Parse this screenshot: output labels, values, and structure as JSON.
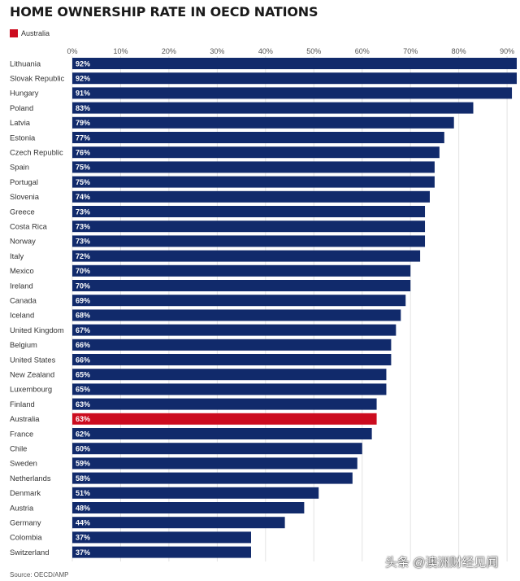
{
  "colors": {
    "bar": "#112a6b",
    "highlight": "#cc0c1f",
    "grid": "#e3e3e3",
    "label_text": "#333333",
    "value_text": "#ffffff"
  },
  "watermark": "头条 @澳洲财经见闻",
  "chart_data": {
    "type": "bar",
    "orientation": "horizontal",
    "title": "HOME OWNERSHIP RATE IN OECD NATIONS",
    "legend": [
      {
        "label": "Australia",
        "color": "#cc0c1f"
      }
    ],
    "highlight": "Australia",
    "xlim": [
      0,
      92
    ],
    "xticks": [
      0,
      10,
      20,
      30,
      40,
      50,
      60,
      70,
      80,
      90
    ],
    "xtick_labels": [
      "0%",
      "10%",
      "20%",
      "30%",
      "40%",
      "50%",
      "60%",
      "70%",
      "80%",
      "90%"
    ],
    "categories": [
      "Lithuania",
      "Slovak Republic",
      "Hungary",
      "Poland",
      "Latvia",
      "Estonia",
      "Czech Republic",
      "Spain",
      "Portugal",
      "Slovenia",
      "Greece",
      "Costa Rica",
      "Norway",
      "Italy",
      "Mexico",
      "Ireland",
      "Canada",
      "Iceland",
      "United Kingdom",
      "Belgium",
      "United States",
      "New Zealand",
      "Luxembourg",
      "Finland",
      "Australia",
      "France",
      "Chile",
      "Sweden",
      "Netherlands",
      "Denmark",
      "Austria",
      "Germany",
      "Colombia",
      "Switzerland"
    ],
    "values": [
      92,
      92,
      91,
      83,
      79,
      77,
      76,
      75,
      75,
      74,
      73,
      73,
      73,
      72,
      70,
      70,
      69,
      68,
      67,
      66,
      66,
      65,
      65,
      63,
      63,
      62,
      60,
      59,
      58,
      51,
      48,
      44,
      37,
      37
    ],
    "value_labels": [
      "92%",
      "92%",
      "91%",
      "83%",
      "79%",
      "77%",
      "76%",
      "75%",
      "75%",
      "74%",
      "73%",
      "73%",
      "73%",
      "72%",
      "70%",
      "70%",
      "69%",
      "68%",
      "67%",
      "66%",
      "66%",
      "65%",
      "65%",
      "63%",
      "63%",
      "62%",
      "60%",
      "59%",
      "58%",
      "51%",
      "48%",
      "44%",
      "37%",
      "37%"
    ],
    "source": "Source: OECD/AMP"
  }
}
